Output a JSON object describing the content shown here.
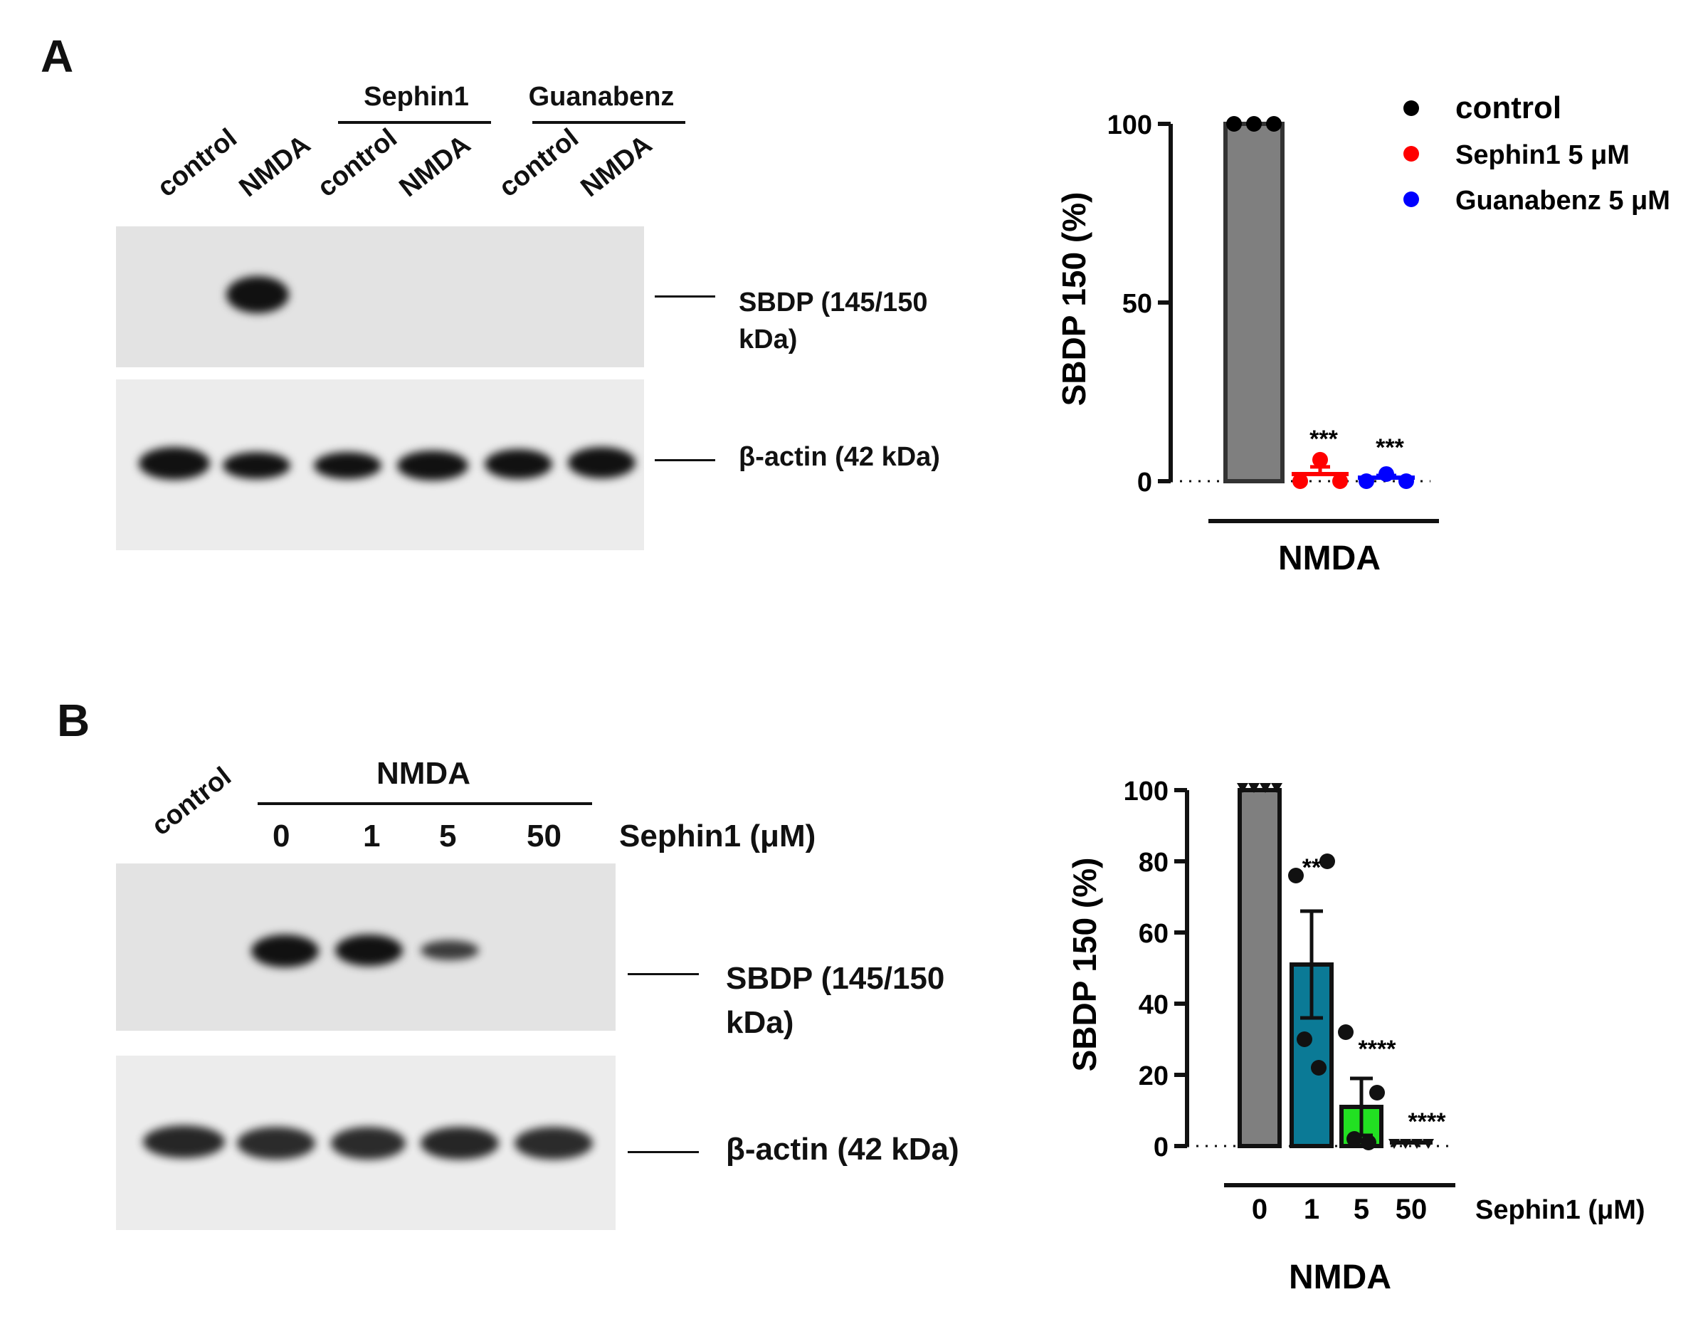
{
  "panel_a": {
    "letter": "A",
    "lanes": [
      "control",
      "NMDA",
      "control",
      "NMDA",
      "control",
      "NMDA"
    ],
    "groups": [
      "Sephin1",
      "Guanabenz"
    ],
    "markers": [
      "SBDP (145/150\nkDa)",
      "β-actin (42 kDa)"
    ]
  },
  "panel_b": {
    "letter": "B",
    "lane_control": "control",
    "group": "NMDA",
    "doses": [
      "0",
      "1",
      "5",
      "50"
    ],
    "dose_unit": "Sephin1 (μM)",
    "markers": [
      "SBDP (145/150\nkDa)",
      "β-actin (42 kDa)"
    ]
  },
  "colors": {
    "bar_gray": "#7f7f7f",
    "control_dot": "#000000",
    "sephin1_dot": "#ff0000",
    "guanabenz_dot": "#0000ff",
    "bar_teal": "#0b7a96",
    "bar_green": "#22e022"
  },
  "chart_data": [
    {
      "type": "bar",
      "ylabel": "SBDP 150 (%)",
      "xlabel": "NMDA",
      "ylim": [
        0,
        100
      ],
      "yticks": [
        "0",
        "50",
        "100"
      ],
      "legend": [
        "control",
        "Sephin1 5 μM",
        "Guanabenz 5 μM"
      ],
      "legend_position": "top-right",
      "bars": [
        {
          "name": "control",
          "value": 100,
          "error": 0,
          "points": [
            100,
            100,
            100
          ],
          "significance": ""
        },
        {
          "name": "Sephin1 5 μM",
          "value": 2,
          "error": 2,
          "points": [
            0,
            6,
            0
          ],
          "significance": "***"
        },
        {
          "name": "Guanabenz 5 μM",
          "value": 1,
          "error": 0.6,
          "points": [
            0,
            2,
            0
          ],
          "significance": "***"
        }
      ]
    },
    {
      "type": "bar",
      "ylabel": "SBDP 150 (%)",
      "xlabel": "NMDA",
      "x_unit": "Sephin1 (μM)",
      "ylim": [
        0,
        100
      ],
      "yticks": [
        "0",
        "20",
        "40",
        "60",
        "80",
        "100"
      ],
      "categories": [
        "0",
        "1",
        "5",
        "50"
      ],
      "bars": [
        {
          "value": 100,
          "error": 0,
          "points": [
            100,
            100,
            100,
            100
          ],
          "significance": ""
        },
        {
          "value": 51,
          "error": 15,
          "points": [
            76,
            80,
            30,
            22
          ],
          "significance": "**"
        },
        {
          "value": 11,
          "error": 8,
          "points": [
            32,
            15,
            2,
            1
          ],
          "significance": "****"
        },
        {
          "value": 1,
          "error": 0,
          "points": [
            0,
            0,
            0,
            0
          ],
          "significance": "****"
        }
      ]
    }
  ]
}
